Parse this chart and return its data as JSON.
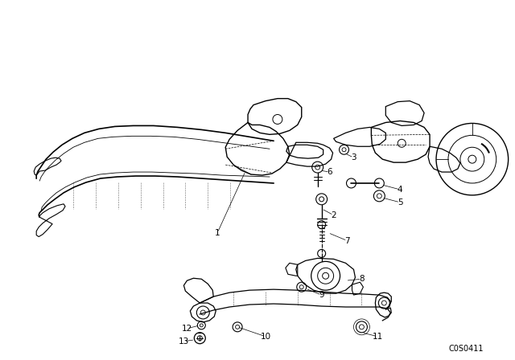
{
  "bg_color": "#ffffff",
  "line_color": "#000000",
  "fig_width": 6.4,
  "fig_height": 4.48,
  "dpi": 100,
  "watermark_text": "C0S0411",
  "watermark_fontsize": 7
}
